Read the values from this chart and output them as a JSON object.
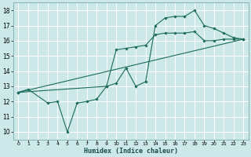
{
  "title": "",
  "xlabel": "Humidex (Indice chaleur)",
  "background_color": "#cde8e8",
  "line_color": "#1a6b5a",
  "grid_color": "#b0d0d0",
  "xlim": [
    -0.5,
    23.5
  ],
  "ylim": [
    9.5,
    18.5
  ],
  "xticks": [
    0,
    1,
    2,
    3,
    4,
    5,
    6,
    7,
    8,
    9,
    10,
    11,
    12,
    13,
    14,
    15,
    16,
    17,
    18,
    19,
    20,
    21,
    22,
    23
  ],
  "yticks": [
    10,
    11,
    12,
    13,
    14,
    15,
    16,
    17,
    18
  ],
  "line1_x": [
    0,
    1,
    3,
    4,
    5,
    6,
    7,
    8,
    9,
    10,
    11,
    12,
    13,
    14,
    15,
    16,
    17,
    18,
    19,
    20,
    21,
    22,
    23
  ],
  "line1_y": [
    12.6,
    12.8,
    11.9,
    12.0,
    10.0,
    11.9,
    12.0,
    12.15,
    13.0,
    13.2,
    14.2,
    13.0,
    13.3,
    17.0,
    17.5,
    17.6,
    17.6,
    18.0,
    17.0,
    16.8,
    16.5,
    16.2,
    16.1
  ],
  "line2_x": [
    0,
    9,
    10,
    11,
    12,
    13,
    14,
    15,
    16,
    17,
    18,
    19,
    20,
    21,
    22,
    23
  ],
  "line2_y": [
    12.6,
    13.0,
    15.4,
    15.5,
    15.6,
    15.7,
    16.4,
    16.5,
    16.5,
    16.5,
    16.6,
    16.0,
    16.0,
    16.1,
    16.1,
    16.1
  ],
  "line3_x": [
    0,
    23
  ],
  "line3_y": [
    12.6,
    16.1
  ]
}
